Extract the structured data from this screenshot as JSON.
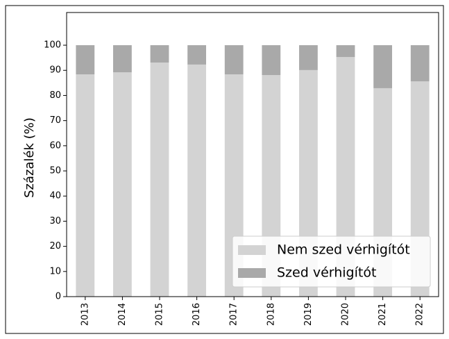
{
  "chart_data": {
    "type": "bar",
    "stacked": true,
    "ylabel": "Százalék (%)",
    "categories": [
      "2013",
      "2014",
      "2015",
      "2016",
      "2017",
      "2018",
      "2019",
      "2020",
      "2021",
      "2022"
    ],
    "series": [
      {
        "name": "Nem szed vérhigítót",
        "color": "#d3d3d3",
        "values": [
          88.4,
          89.2,
          93.1,
          92.3,
          88.4,
          88.1,
          90.1,
          95.3,
          82.9,
          85.6
        ]
      },
      {
        "name": "Szed vérhigítót",
        "color": "#a9a9a9",
        "values": [
          11.6,
          10.8,
          6.9,
          7.7,
          11.6,
          11.9,
          9.9,
          4.7,
          17.1,
          14.4
        ]
      }
    ],
    "ylim": [
      0,
      113
    ],
    "yticks": [
      0,
      10,
      20,
      30,
      40,
      50,
      60,
      70,
      80,
      90,
      100
    ],
    "legend": "lower right"
  }
}
